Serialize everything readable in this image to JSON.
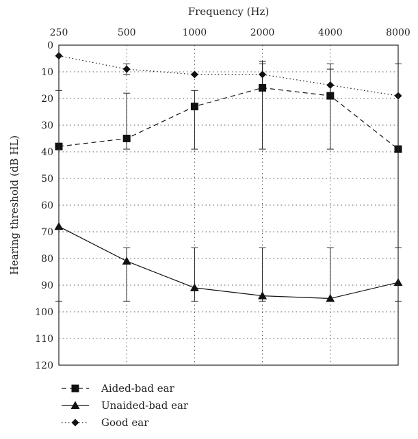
{
  "chart_data": {
    "type": "line",
    "title": "",
    "xlabel": "Frequency (Hz)",
    "ylabel": "Hearing threshold (dB HL)",
    "categories": [
      "250",
      "500",
      "1000",
      "2000",
      "4000",
      "8000"
    ],
    "y_ticks": [
      0,
      10,
      20,
      30,
      40,
      50,
      60,
      70,
      80,
      90,
      100,
      110,
      120
    ],
    "ylim": [
      0,
      120
    ],
    "y_inverted": true,
    "x_axis_position": "top",
    "grid": true,
    "legend_position": "bottom-left",
    "series": [
      {
        "name": "Aided-bad ear",
        "marker": "square",
        "line_style": "dashed",
        "values": [
          38,
          35,
          23,
          16,
          19,
          39
        ],
        "error_low": [
          17,
          18,
          17,
          6,
          9,
          7
        ],
        "error_high": [
          38,
          39,
          39,
          39,
          39,
          39
        ]
      },
      {
        "name": "Unaided-bad ear",
        "marker": "triangle",
        "line_style": "solid",
        "values": [
          68,
          81,
          91,
          94,
          95,
          89
        ],
        "error_low": [
          null,
          76,
          76,
          76,
          76,
          76
        ],
        "error_high": [
          96,
          96,
          96,
          96,
          96,
          96
        ]
      },
      {
        "name": "Good ear",
        "marker": "diamond",
        "line_style": "dotted",
        "values": [
          4,
          9,
          11,
          11,
          15,
          19
        ],
        "error_low": [
          null,
          7,
          null,
          7,
          7,
          null
        ],
        "error_high": [
          null,
          11,
          null,
          16,
          19,
          null
        ]
      }
    ]
  }
}
